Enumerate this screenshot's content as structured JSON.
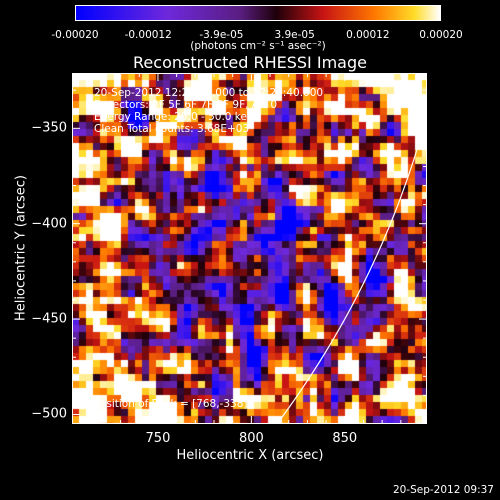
{
  "chart_data": {
    "type": "heatmap",
    "title": "Reconstructed RHESSI Image",
    "xlabel": "Heliocentric X (arcsec)",
    "ylabel": "Heliocentric Y (arcsec)",
    "xlim": [
      704,
      894
    ],
    "ylim": [
      -505,
      -321
    ],
    "x_ticks": [
      750,
      800,
      850
    ],
    "y_ticks": [
      -350,
      -400,
      -450,
      -500
    ],
    "colorbar": {
      "range": [
        -0.0002,
        0.0002
      ],
      "ticks": [
        "-0.00020",
        "-0.00012",
        "-3.9e-05",
        "3.9e-05",
        "0.00012",
        "0.00020"
      ],
      "unit_label": "(photons cm⁻² s⁻¹ asec⁻²)",
      "colormap": "blue-purple-red-yellow-white"
    },
    "info_lines": [
      "20-Sep-2012 12:27:00.000 to 12:29:40.000",
      "Detectors: 3F 5F 6F 7F 8F 9F, Att 0",
      "Energy Range: 25.0 - 50.0 keV",
      "Clean     Total counts: 3.68E+03"
    ],
    "peak_label": "Position of Peak = [768,-338]",
    "timestamp": "20-Sep-2012 09:37",
    "limb_curve": "white solar limb arc at lower right"
  }
}
